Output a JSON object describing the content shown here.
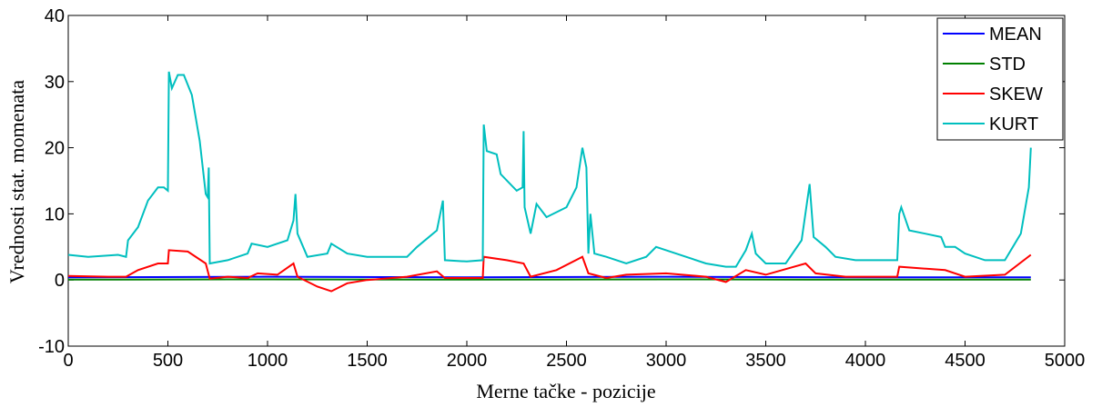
{
  "chart_data": {
    "type": "line",
    "xlabel": "Merne tačke - pozicije",
    "ylabel": "Vrednosti stat. momenata",
    "xlim": [
      0,
      5000
    ],
    "xticks": [
      0,
      500,
      1000,
      1500,
      2000,
      2500,
      3000,
      3500,
      4000,
      4500,
      5000
    ],
    "ylim": [
      -10,
      40
    ],
    "yticks": [
      -10,
      0,
      10,
      20,
      30,
      40
    ],
    "legend": "upper right",
    "series": [
      {
        "name": "MEAN",
        "color": "#0000ff",
        "x": [
          0,
          1000,
          2000,
          3000,
          4000,
          4830
        ],
        "values": [
          0.4,
          0.5,
          0.4,
          0.5,
          0.4,
          0.4
        ]
      },
      {
        "name": "STD",
        "color": "#008000",
        "x": [
          0,
          1000,
          2000,
          3000,
          4000,
          4830
        ],
        "values": [
          0.05,
          0.1,
          0.05,
          0.1,
          0.05,
          0.05
        ]
      },
      {
        "name": "SKEW",
        "color": "#ff0000",
        "x": [
          0,
          200,
          290,
          350,
          450,
          500,
          505,
          600,
          690,
          710,
          800,
          900,
          950,
          1050,
          1130,
          1150,
          1250,
          1320,
          1400,
          1500,
          1700,
          1850,
          1890,
          2080,
          2085,
          2200,
          2285,
          2320,
          2450,
          2580,
          2610,
          2700,
          2800,
          3000,
          3200,
          3300,
          3400,
          3500,
          3700,
          3750,
          3900,
          4160,
          4170,
          4400,
          4500,
          4700,
          4830
        ],
        "values": [
          0.6,
          0.5,
          0.5,
          1.5,
          2.5,
          2.5,
          4.5,
          4.3,
          2.5,
          0.2,
          0.5,
          0.3,
          1,
          0.8,
          2.5,
          0.5,
          -1,
          -1.7,
          -0.5,
          0,
          0.5,
          1.3,
          0.3,
          0.3,
          3.5,
          3,
          2.5,
          0.5,
          1.5,
          3.5,
          1,
          0.3,
          0.8,
          1,
          0.5,
          -0.3,
          1.5,
          0.8,
          2.5,
          1,
          0.5,
          0.5,
          2,
          1.5,
          0.5,
          0.8,
          3.8
        ]
      },
      {
        "name": "KURT",
        "color": "#00bfbf",
        "x": [
          0,
          100,
          250,
          290,
          300,
          350,
          400,
          450,
          480,
          500,
          505,
          520,
          550,
          580,
          620,
          660,
          690,
          700,
          705,
          710,
          800,
          900,
          920,
          1000,
          1100,
          1130,
          1140,
          1150,
          1200,
          1300,
          1320,
          1400,
          1500,
          1600,
          1700,
          1750,
          1850,
          1880,
          1890,
          2000,
          2080,
          2085,
          2100,
          2150,
          2170,
          2250,
          2280,
          2285,
          2290,
          2320,
          2350,
          2400,
          2500,
          2550,
          2580,
          2600,
          2610,
          2620,
          2640,
          2700,
          2800,
          2900,
          2950,
          3000,
          3100,
          3200,
          3300,
          3350,
          3400,
          3430,
          3450,
          3500,
          3600,
          3680,
          3720,
          3740,
          3800,
          3850,
          3950,
          4100,
          4160,
          4170,
          4180,
          4220,
          4300,
          4380,
          4400,
          4450,
          4500,
          4600,
          4700,
          4780,
          4820,
          4830
        ],
        "values": [
          3.8,
          3.5,
          3.8,
          3.5,
          6,
          8,
          12,
          14,
          14,
          13.5,
          31.5,
          29,
          31,
          31,
          28,
          21,
          13,
          12.5,
          17,
          2.5,
          3,
          4,
          5.5,
          5,
          6,
          9,
          13,
          7,
          3.5,
          4,
          5.5,
          4,
          3.5,
          3.5,
          3.5,
          5,
          7.5,
          12,
          3,
          2.8,
          3,
          23.5,
          19.5,
          19,
          16,
          13.5,
          14,
          22.5,
          11,
          7,
          11.5,
          9.5,
          11,
          14,
          20,
          17,
          4,
          10,
          4,
          3.5,
          2.5,
          3.5,
          5,
          4.5,
          3.5,
          2.5,
          2,
          2,
          4.5,
          7,
          4,
          2.5,
          2.5,
          6,
          14.5,
          6.5,
          5,
          3.5,
          3,
          3,
          3,
          10,
          11,
          7.5,
          7,
          6.5,
          5,
          5,
          4,
          3,
          3,
          7,
          14,
          20
        ]
      }
    ]
  }
}
